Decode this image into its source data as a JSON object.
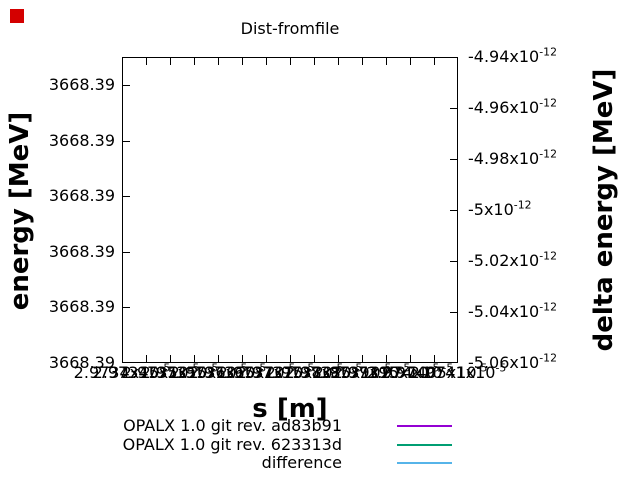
{
  "window": {
    "background": "#ffffff"
  },
  "marker": {
    "color": "#d40000"
  },
  "title": "Dist-fromfile",
  "axes": {
    "x": {
      "label": "s [m]",
      "ticks": [
        "2.9734x10^-5",
        "2.97345x10^-5",
        "2.9735x10^-5",
        "2.97355x10^-5",
        "2.9736x10^-5",
        "2.97365x10^-5",
        "2.9737x10^-5",
        "2.97375x10^-5",
        "2.9738x10^-5",
        "2.97385x10^-5",
        "2.9739x10^-5",
        "2.97395x10^-5",
        "2.974x10^-5",
        "2.97405x10^-5",
        "2.9741x10^-5"
      ]
    },
    "y_left": {
      "label": "energy [MeV]",
      "ticks": [
        "3668.39",
        "3668.39",
        "3668.39",
        "3668.39",
        "3668.39",
        "3668.39"
      ]
    },
    "y_right": {
      "label": "delta energy [MeV]",
      "ticks": [
        "-4.94x10^-12",
        "-4.96x10^-12",
        "-4.98x10^-12",
        "-5x10^-12",
        "-5.02x10^-12",
        "-5.04x10^-12",
        "-5.06x10^-12"
      ]
    }
  },
  "legend": [
    {
      "label": "OPALX 1.0 git rev. ad83b91",
      "color": "#9400d3"
    },
    {
      "label": "OPALX 1.0 git rev. 623313d",
      "color": "#009e73"
    },
    {
      "label": "difference",
      "color": "#56b4e9"
    }
  ],
  "chart_data": {
    "type": "line",
    "title": "Dist-fromfile",
    "xlabel": "s [m]",
    "ylabel": "energy [MeV]",
    "y2label": "delta energy [MeV]",
    "x_tick_labels": [
      "2.9734x10^-5",
      "2.97345x10^-5",
      "2.9735x10^-5",
      "2.97355x10^-5",
      "2.9736x10^-5",
      "2.97365x10^-5",
      "2.9737x10^-5",
      "2.97375x10^-5",
      "2.9738x10^-5",
      "2.97385x10^-5",
      "2.9739x10^-5",
      "2.97395x10^-5",
      "2.974x10^-5",
      "2.97405x10^-5",
      "2.9741x10^-5"
    ],
    "y_tick_labels": [
      "3668.39",
      "3668.39",
      "3668.39",
      "3668.39",
      "3668.39",
      "3668.39"
    ],
    "y2_tick_labels": [
      "-4.94x10^-12",
      "-4.96x10^-12",
      "-4.98x10^-12",
      "-5x10^-12",
      "-5.02x10^-12",
      "-5.04x10^-12",
      "-5.06x10^-12"
    ],
    "y2_range": [
      -5.06e-12,
      -4.94e-12
    ],
    "series": [
      {
        "name": "OPALX 1.0 git rev. ad83b91",
        "color": "#9400d3",
        "axis": "y1",
        "values": []
      },
      {
        "name": "OPALX 1.0 git rev. 623313d",
        "color": "#009e73",
        "axis": "y1",
        "values": []
      },
      {
        "name": "difference",
        "color": "#56b4e9",
        "axis": "y2",
        "values": []
      }
    ],
    "grid": false,
    "legend_position": "below-right",
    "plot_area_empty": true
  }
}
